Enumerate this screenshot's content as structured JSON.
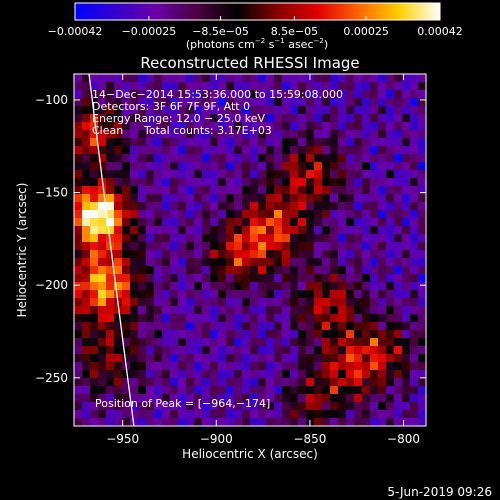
{
  "chart_data": {
    "type": "heatmap",
    "title": "Reconstructed RHESSI Image",
    "xlabel": "Heliocentric X (arcsec)",
    "ylabel": "Heliocentric Y (arcsec)",
    "xlim": [
      -976,
      -788
    ],
    "ylim": [
      -276,
      -86
    ],
    "x_ticks": [
      -950,
      -900,
      -850,
      -800
    ],
    "x_tick_labels": [
      "−950",
      "−900",
      "−850",
      "−800"
    ],
    "y_ticks": [
      -100,
      -150,
      -200,
      -250
    ],
    "y_tick_labels": [
      "−100",
      "−150",
      "−200",
      "−250"
    ],
    "colorbar": {
      "range": [
        -0.00042,
        0.00042
      ],
      "ticks": [
        -0.00042,
        -0.00025,
        -8.5e-05,
        8.5e-05,
        0.00025,
        0.00042
      ],
      "tick_labels": [
        "−0.00042",
        "−0.00025",
        "−8.5e−05",
        "8.5e−05",
        "0.00025",
        "0.00042"
      ],
      "unit_label": {
        "prefix": "(photons cm",
        "exp1": "−2",
        "mid1": " s",
        "exp2": "−1",
        "mid2": " asec",
        "exp3": "−2",
        "suffix": ")"
      },
      "colors": [
        "#0000ff",
        "#3300cc",
        "#6a00a8",
        "#4a0040",
        "#000000",
        "#8a0000",
        "#e00000",
        "#ff6600",
        "#ffd000",
        "#ffffff"
      ]
    },
    "info_lines": [
      "14−Dec−2014 15:53:36.000 to 15:59:08.000",
      "Detectors: 3F 6F 7F 9F, Att 0",
      "Energy Range: 12.0 − 25.0 keV"
    ],
    "clean_label": "Clean",
    "total_counts": "Total counts: 3.17E+03",
    "peak_label": "Position of Peak = [−964,−174]",
    "peak_position": [
      -964,
      -174
    ],
    "sources": [
      {
        "x": -963,
        "y": -162,
        "amplitude": 1.0,
        "sigma": 12
      },
      {
        "x": -960,
        "y": -200,
        "amplitude": 0.75,
        "sigma": 14
      },
      {
        "x": -966,
        "y": -118,
        "amplitude": 0.55,
        "sigma": 12
      },
      {
        "x": -958,
        "y": -240,
        "amplitude": 0.35,
        "sigma": 14
      },
      {
        "x": -870,
        "y": -170,
        "amplitude": 0.55,
        "sigma": 14
      },
      {
        "x": -850,
        "y": -140,
        "amplitude": 0.45,
        "sigma": 13
      },
      {
        "x": -890,
        "y": -185,
        "amplitude": 0.4,
        "sigma": 12
      },
      {
        "x": -840,
        "y": -210,
        "amplitude": 0.45,
        "sigma": 12
      },
      {
        "x": -830,
        "y": -245,
        "amplitude": 0.45,
        "sigma": 14
      },
      {
        "x": -810,
        "y": -235,
        "amplitude": 0.35,
        "sigma": 12
      },
      {
        "x": -850,
        "y": -265,
        "amplitude": 0.3,
        "sigma": 10
      }
    ],
    "limb_line": {
      "x": [
        -968,
        -955,
        -944
      ],
      "y": [
        -86,
        -190,
        -276
      ],
      "color": "#ffffff"
    },
    "grid": false,
    "legend": "none"
  },
  "footer_date": "5-Jun-2019 09:26"
}
